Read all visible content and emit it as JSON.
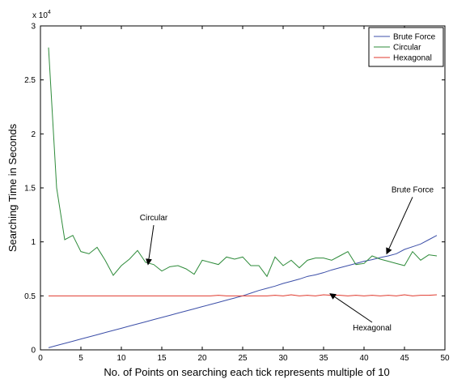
{
  "chart_data": {
    "type": "line",
    "title": "",
    "xlabel": "No. of Points on searching each tick represents multiple of 10",
    "ylabel": "Searching Time in Seconds",
    "y_multiplier": "x 10",
    "y_multiplier_exponent": "4",
    "xlim": [
      0,
      50
    ],
    "ylim": [
      0,
      30000
    ],
    "x_ticks": [
      0,
      5,
      10,
      15,
      20,
      25,
      30,
      35,
      40,
      45,
      50
    ],
    "y_ticks": [
      0,
      5000,
      10000,
      15000,
      20000,
      25000,
      30000
    ],
    "y_tick_labels": [
      "0",
      "0.5",
      "1",
      "1.5",
      "2",
      "2.5",
      "3"
    ],
    "grid": false,
    "legend_position": "top-right",
    "series": [
      {
        "name": "Brute Force",
        "color": "#3c4fa8",
        "x": [
          1,
          2,
          3,
          4,
          5,
          6,
          7,
          8,
          9,
          10,
          11,
          12,
          13,
          14,
          15,
          16,
          17,
          18,
          19,
          20,
          21,
          22,
          23,
          24,
          25,
          26,
          27,
          28,
          29,
          30,
          31,
          32,
          33,
          34,
          35,
          36,
          37,
          38,
          39,
          40,
          41,
          42,
          43,
          44,
          45,
          46,
          47,
          48,
          49
        ],
        "values": [
          200,
          400,
          600,
          800,
          1000,
          1200,
          1400,
          1600,
          1800,
          2000,
          2200,
          2400,
          2600,
          2800,
          3000,
          3200,
          3400,
          3600,
          3800,
          4000,
          4200,
          4400,
          4600,
          4800,
          5000,
          5250,
          5500,
          5700,
          5900,
          6150,
          6350,
          6550,
          6800,
          6950,
          7150,
          7400,
          7600,
          7800,
          8000,
          8200,
          8350,
          8550,
          8700,
          8900,
          9300,
          9550,
          9800,
          10200,
          10600
        ]
      },
      {
        "name": "Circular",
        "color": "#2e8b3a",
        "x": [
          1,
          2,
          3,
          4,
          5,
          6,
          7,
          8,
          9,
          10,
          11,
          12,
          13,
          14,
          15,
          16,
          17,
          18,
          19,
          20,
          21,
          22,
          23,
          24,
          25,
          26,
          27,
          28,
          29,
          30,
          31,
          32,
          33,
          34,
          35,
          36,
          37,
          38,
          39,
          40,
          41,
          42,
          43,
          44,
          45,
          46,
          47,
          48,
          49
        ],
        "values": [
          28000,
          15000,
          10200,
          10600,
          9100,
          8900,
          9500,
          8300,
          6900,
          7800,
          8400,
          9200,
          8100,
          7900,
          7300,
          7700,
          7800,
          7500,
          7000,
          8300,
          8100,
          7900,
          8600,
          8400,
          8600,
          7800,
          7800,
          6800,
          8600,
          7800,
          8300,
          7600,
          8300,
          8500,
          8500,
          8300,
          8700,
          9100,
          7900,
          8000,
          8700,
          8400,
          8200,
          8000,
          7800,
          9100,
          8300,
          8800,
          8700
        ]
      },
      {
        "name": "Hexagonal",
        "color": "#e03a2e",
        "x": [
          1,
          2,
          3,
          4,
          5,
          6,
          7,
          8,
          9,
          10,
          11,
          12,
          13,
          14,
          15,
          16,
          17,
          18,
          19,
          20,
          21,
          22,
          23,
          24,
          25,
          26,
          27,
          28,
          29,
          30,
          31,
          32,
          33,
          34,
          35,
          36,
          37,
          38,
          39,
          40,
          41,
          42,
          43,
          44,
          45,
          46,
          47,
          48,
          49
        ],
        "values": [
          5000,
          5000,
          5000,
          5000,
          5000,
          5000,
          5000,
          5000,
          5000,
          5000,
          5000,
          5000,
          5000,
          5000,
          5000,
          5000,
          5000,
          5000,
          5000,
          5000,
          5000,
          5050,
          5000,
          5000,
          5000,
          5000,
          5000,
          5000,
          5050,
          5000,
          5100,
          5000,
          5050,
          5000,
          5100,
          5050,
          5050,
          5000,
          5050,
          5000,
          5050,
          5000,
          5050,
          5000,
          5100,
          5000,
          5050,
          5050,
          5100
        ]
      }
    ],
    "annotations": [
      {
        "text": "Circular",
        "text_x": 14,
        "text_y": 12000,
        "arrow_x": 13.3,
        "arrow_y": 7900
      },
      {
        "text": "Brute Force",
        "text_x": 46,
        "text_y": 14600,
        "arrow_x": 42.8,
        "arrow_y": 8900
      },
      {
        "text": "Hexagonal",
        "text_x": 41,
        "text_y": 1800,
        "arrow_x": 35.8,
        "arrow_y": 5200
      }
    ]
  }
}
